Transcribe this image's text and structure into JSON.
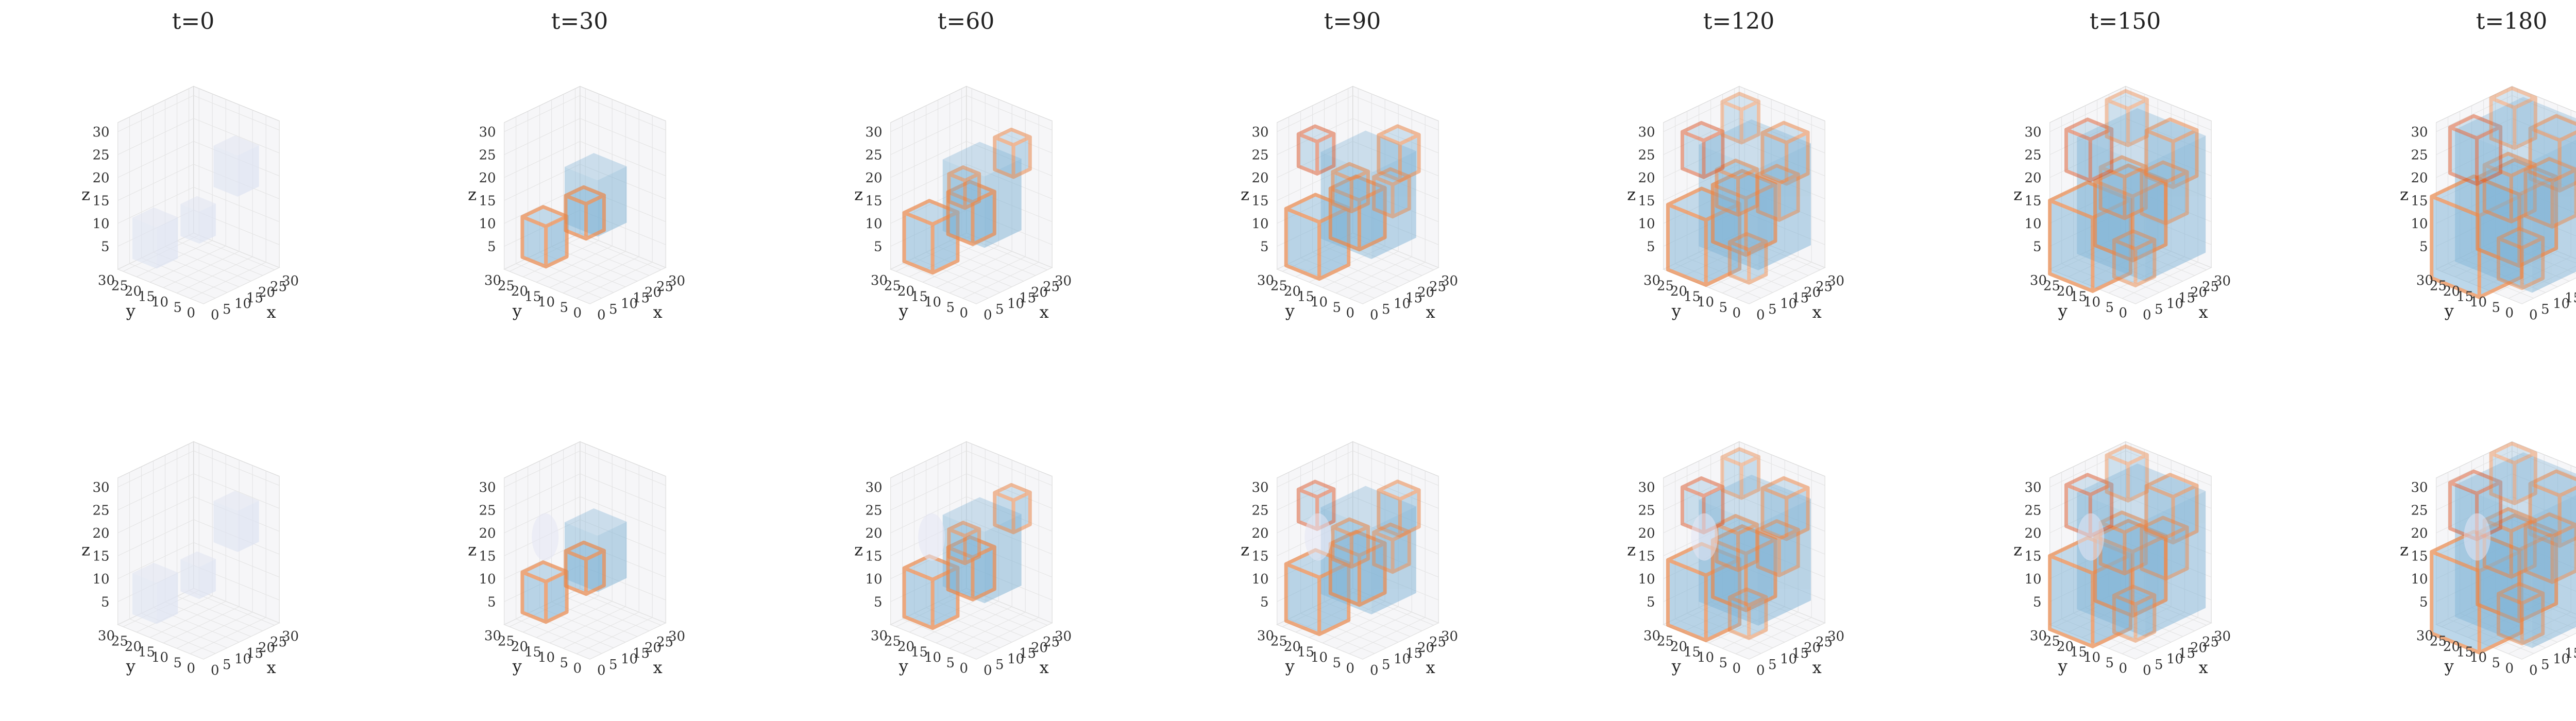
{
  "figure": {
    "columns": [
      {
        "title": "t=0",
        "stage": 0
      },
      {
        "title": "t=30",
        "stage": 1
      },
      {
        "title": "t=60",
        "stage": 2
      },
      {
        "title": "t=90",
        "stage": 3
      },
      {
        "title": "t=120",
        "stage": 4
      },
      {
        "title": "t=150",
        "stage": 5
      },
      {
        "title": "t=180",
        "stage": 6
      }
    ],
    "rows": 2,
    "axes": {
      "xlabel": "x",
      "ylabel": "y",
      "zlabel": "z",
      "z_ticks": [
        "0",
        "5",
        "10",
        "15",
        "20",
        "25",
        "30"
      ],
      "x_ticks": [
        "0",
        "5",
        "10",
        "15",
        "20",
        "25",
        "30"
      ],
      "y_ticks": [
        "0",
        "5",
        "10",
        "15",
        "20",
        "25",
        "30"
      ],
      "range": [
        0,
        32
      ]
    },
    "colors": {
      "volume_fill": "#7fb3d5",
      "boundary_warm": "#e8874a",
      "boundary_hot": "#d9572a",
      "grid": "#e3e3e3",
      "pane": "#f6f6f8"
    }
  }
}
